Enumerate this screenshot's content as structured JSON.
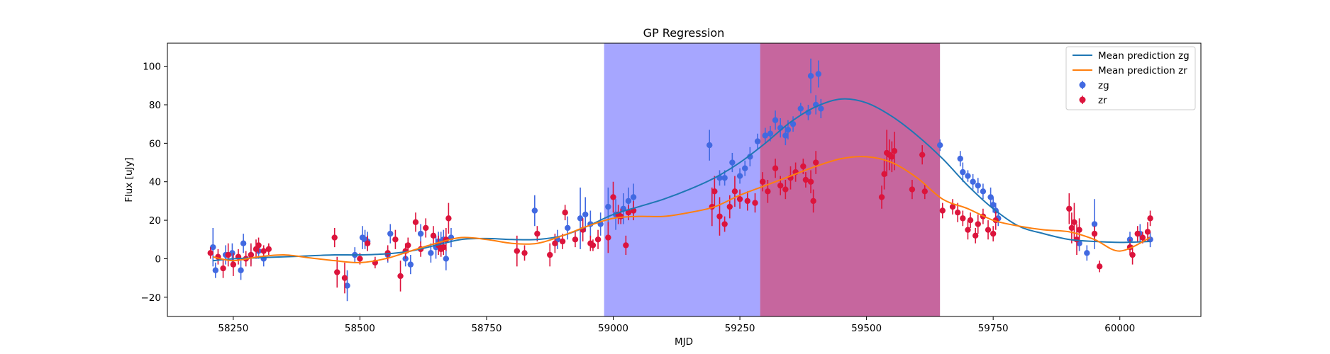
{
  "chart_data": {
    "type": "scatter",
    "title": "GP Regression",
    "xlabel": "MJD",
    "ylabel": "Flux [uJy]",
    "xlim": [
      58120,
      60160
    ],
    "ylim": [
      -30,
      112
    ],
    "xticks": [
      58250,
      58500,
      58750,
      59000,
      59250,
      59500,
      59750,
      60000
    ],
    "yticks": [
      -20,
      0,
      20,
      40,
      60,
      80,
      100
    ],
    "legend_position": "upper-right",
    "shaded_regions": [
      {
        "x0": 58982,
        "x1": 59290,
        "color": "#0000ff",
        "opacity": 0.35
      },
      {
        "x0": 59290,
        "x1": 59645,
        "color": "#a0005e",
        "opacity": 0.6
      }
    ],
    "lines": [
      {
        "name": "Mean prediction zg",
        "color": "#1f77b4",
        "x": [
          58210,
          58250,
          58300,
          58350,
          58400,
          58450,
          58500,
          58550,
          58600,
          58650,
          58700,
          58750,
          58800,
          58850,
          58900,
          58950,
          59000,
          59050,
          59100,
          59150,
          59200,
          59250,
          59300,
          59350,
          59400,
          59450,
          59500,
          59550,
          59600,
          59650,
          59700,
          59750,
          59800,
          59850,
          59900,
          59950,
          60000,
          60060
        ],
        "y": [
          -1,
          0,
          0.5,
          1,
          1.5,
          2,
          2,
          2.5,
          4,
          7,
          10,
          10.5,
          10,
          10,
          12,
          17,
          23,
          27,
          31,
          36,
          42,
          50,
          60,
          71,
          79,
          83,
          81,
          74,
          64,
          52,
          38,
          26,
          17,
          13,
          10,
          9,
          8.5,
          9
        ]
      },
      {
        "name": "Mean prediction zr",
        "color": "#ff7f0e",
        "x": [
          58210,
          58250,
          58300,
          58350,
          58400,
          58450,
          58500,
          58550,
          58600,
          58650,
          58700,
          58750,
          58800,
          58850,
          58900,
          58950,
          59000,
          59050,
          59100,
          59150,
          59200,
          59250,
          59300,
          59350,
          59400,
          59450,
          59500,
          59550,
          59600,
          59650,
          59700,
          59750,
          59800,
          59850,
          59900,
          59950,
          60000,
          60060
        ],
        "y": [
          1,
          -1,
          1,
          2,
          0.5,
          -1,
          -2,
          0,
          4,
          8,
          11,
          10,
          8,
          8,
          12,
          17,
          21,
          22,
          22,
          24,
          27,
          33,
          38,
          43,
          48,
          52,
          53,
          50,
          42,
          31,
          26,
          20,
          17,
          15,
          14,
          10,
          4,
          11
        ]
      }
    ],
    "series": [
      {
        "name": "zg",
        "color": "#4169e1",
        "x": [
          58210,
          58215,
          58235,
          58248,
          58265,
          58270,
          58285,
          58300,
          58310,
          58475,
          58490,
          58505,
          58510,
          58515,
          58555,
          58560,
          58590,
          58600,
          58620,
          58640,
          58650,
          58655,
          58660,
          58665,
          58670,
          58680,
          58845,
          58890,
          58910,
          58935,
          58945,
          58955,
          58975,
          58990,
          59005,
          59020,
          59030,
          59040,
          59190,
          59210,
          59220,
          59235,
          59250,
          59260,
          59270,
          59285,
          59300,
          59310,
          59320,
          59330,
          59340,
          59345,
          59355,
          59370,
          59385,
          59390,
          59400,
          59405,
          59410,
          59645,
          59685,
          59690,
          59700,
          59710,
          59720,
          59730,
          59745,
          59750,
          59755,
          59760,
          59920,
          59935,
          59950,
          60020,
          60040,
          60060
        ],
        "y": [
          6,
          -6,
          2,
          3,
          -6,
          8,
          2,
          4,
          0,
          -14,
          2,
          11,
          10,
          9,
          2,
          13,
          0,
          -3,
          13,
          3,
          6,
          9,
          9,
          10,
          0,
          11,
          25,
          10,
          16,
          21,
          23,
          18,
          18,
          27,
          23,
          26,
          30,
          32,
          59,
          42,
          42,
          50,
          43,
          47,
          53,
          61,
          64,
          65,
          72,
          68,
          64,
          67,
          70,
          78,
          76,
          95,
          80,
          96,
          78,
          59,
          52,
          45,
          43,
          40,
          38,
          35,
          32,
          28,
          25,
          21,
          8,
          3,
          18,
          10,
          13,
          10
        ],
        "yerr": [
          10,
          4,
          5,
          5,
          5,
          5,
          5,
          4,
          4,
          8,
          4,
          6,
          5,
          5,
          4,
          5,
          4,
          5,
          5,
          5,
          6,
          5,
          5,
          5,
          6,
          5,
          8,
          5,
          6,
          16,
          9,
          7,
          6,
          10,
          8,
          8,
          7,
          7,
          8,
          4,
          4,
          5,
          4,
          4,
          5,
          4,
          4,
          4,
          5,
          5,
          5,
          5,
          4,
          3,
          4,
          9,
          5,
          7,
          5,
          3,
          4,
          5,
          3,
          4,
          4,
          4,
          5,
          4,
          4,
          4,
          4,
          4,
          13,
          4,
          5,
          4
        ]
      },
      {
        "name": "zr",
        "color": "#dc143c",
        "x": [
          58205,
          58220,
          58230,
          58240,
          58250,
          58260,
          58275,
          58285,
          58295,
          58300,
          58310,
          58320,
          58450,
          58455,
          58470,
          58500,
          58515,
          58530,
          58555,
          58570,
          58580,
          58590,
          58595,
          58610,
          58620,
          58630,
          58645,
          58655,
          58660,
          58665,
          58670,
          58675,
          58810,
          58825,
          58850,
          58875,
          58885,
          58900,
          58905,
          58925,
          58940,
          58955,
          58960,
          58970,
          58990,
          59000,
          59010,
          59015,
          59025,
          59030,
          59040,
          59195,
          59200,
          59210,
          59220,
          59230,
          59240,
          59250,
          59265,
          59280,
          59295,
          59305,
          59320,
          59330,
          59340,
          59350,
          59360,
          59375,
          59380,
          59390,
          59395,
          59400,
          59530,
          59535,
          59540,
          59545,
          59550,
          59555,
          59590,
          59610,
          59615,
          59650,
          59670,
          59680,
          59690,
          59700,
          59705,
          59715,
          59720,
          59730,
          59740,
          59750,
          59755,
          59900,
          59905,
          59910,
          59915,
          59920,
          59950,
          59960,
          60020,
          60025,
          60035,
          60045,
          60055,
          60060
        ],
        "y": [
          3,
          1,
          -5,
          2,
          -3,
          1,
          0,
          2,
          5,
          7,
          4,
          5,
          11,
          -7,
          -10,
          0,
          8,
          -2,
          3,
          10,
          -9,
          4,
          7,
          19,
          5,
          16,
          12,
          7,
          5,
          6,
          10,
          21,
          4,
          3,
          13,
          2,
          8,
          9,
          24,
          10,
          15,
          8,
          7,
          10,
          11,
          32,
          23,
          22,
          7,
          24,
          25,
          27,
          35,
          22,
          18,
          27,
          35,
          31,
          30,
          29,
          40,
          35,
          47,
          38,
          36,
          42,
          45,
          48,
          41,
          40,
          30,
          50,
          32,
          44,
          55,
          54,
          53,
          56,
          36,
          54,
          35,
          25,
          27,
          24,
          21,
          15,
          20,
          12,
          18,
          22,
          15,
          13,
          20,
          26,
          16,
          19,
          10,
          15,
          13,
          -4,
          6,
          2,
          13,
          11,
          14,
          21
        ],
        "yerr": [
          3,
          4,
          5,
          6,
          6,
          4,
          4,
          6,
          5,
          4,
          3,
          3,
          5,
          8,
          8,
          3,
          4,
          3,
          4,
          5,
          8,
          4,
          4,
          5,
          4,
          5,
          5,
          5,
          4,
          4,
          6,
          8,
          8,
          4,
          4,
          6,
          5,
          4,
          4,
          4,
          6,
          4,
          3,
          5,
          8,
          8,
          5,
          4,
          5,
          4,
          5,
          10,
          8,
          10,
          4,
          6,
          8,
          5,
          5,
          5,
          5,
          6,
          5,
          5,
          5,
          6,
          5,
          4,
          4,
          6,
          6,
          6,
          6,
          8,
          12,
          8,
          8,
          10,
          5,
          5,
          4,
          4,
          4,
          5,
          4,
          5,
          4,
          4,
          5,
          4,
          5,
          4,
          5,
          8,
          8,
          10,
          8,
          6,
          4,
          3,
          4,
          5,
          4,
          3,
          5,
          4
        ]
      }
    ]
  }
}
